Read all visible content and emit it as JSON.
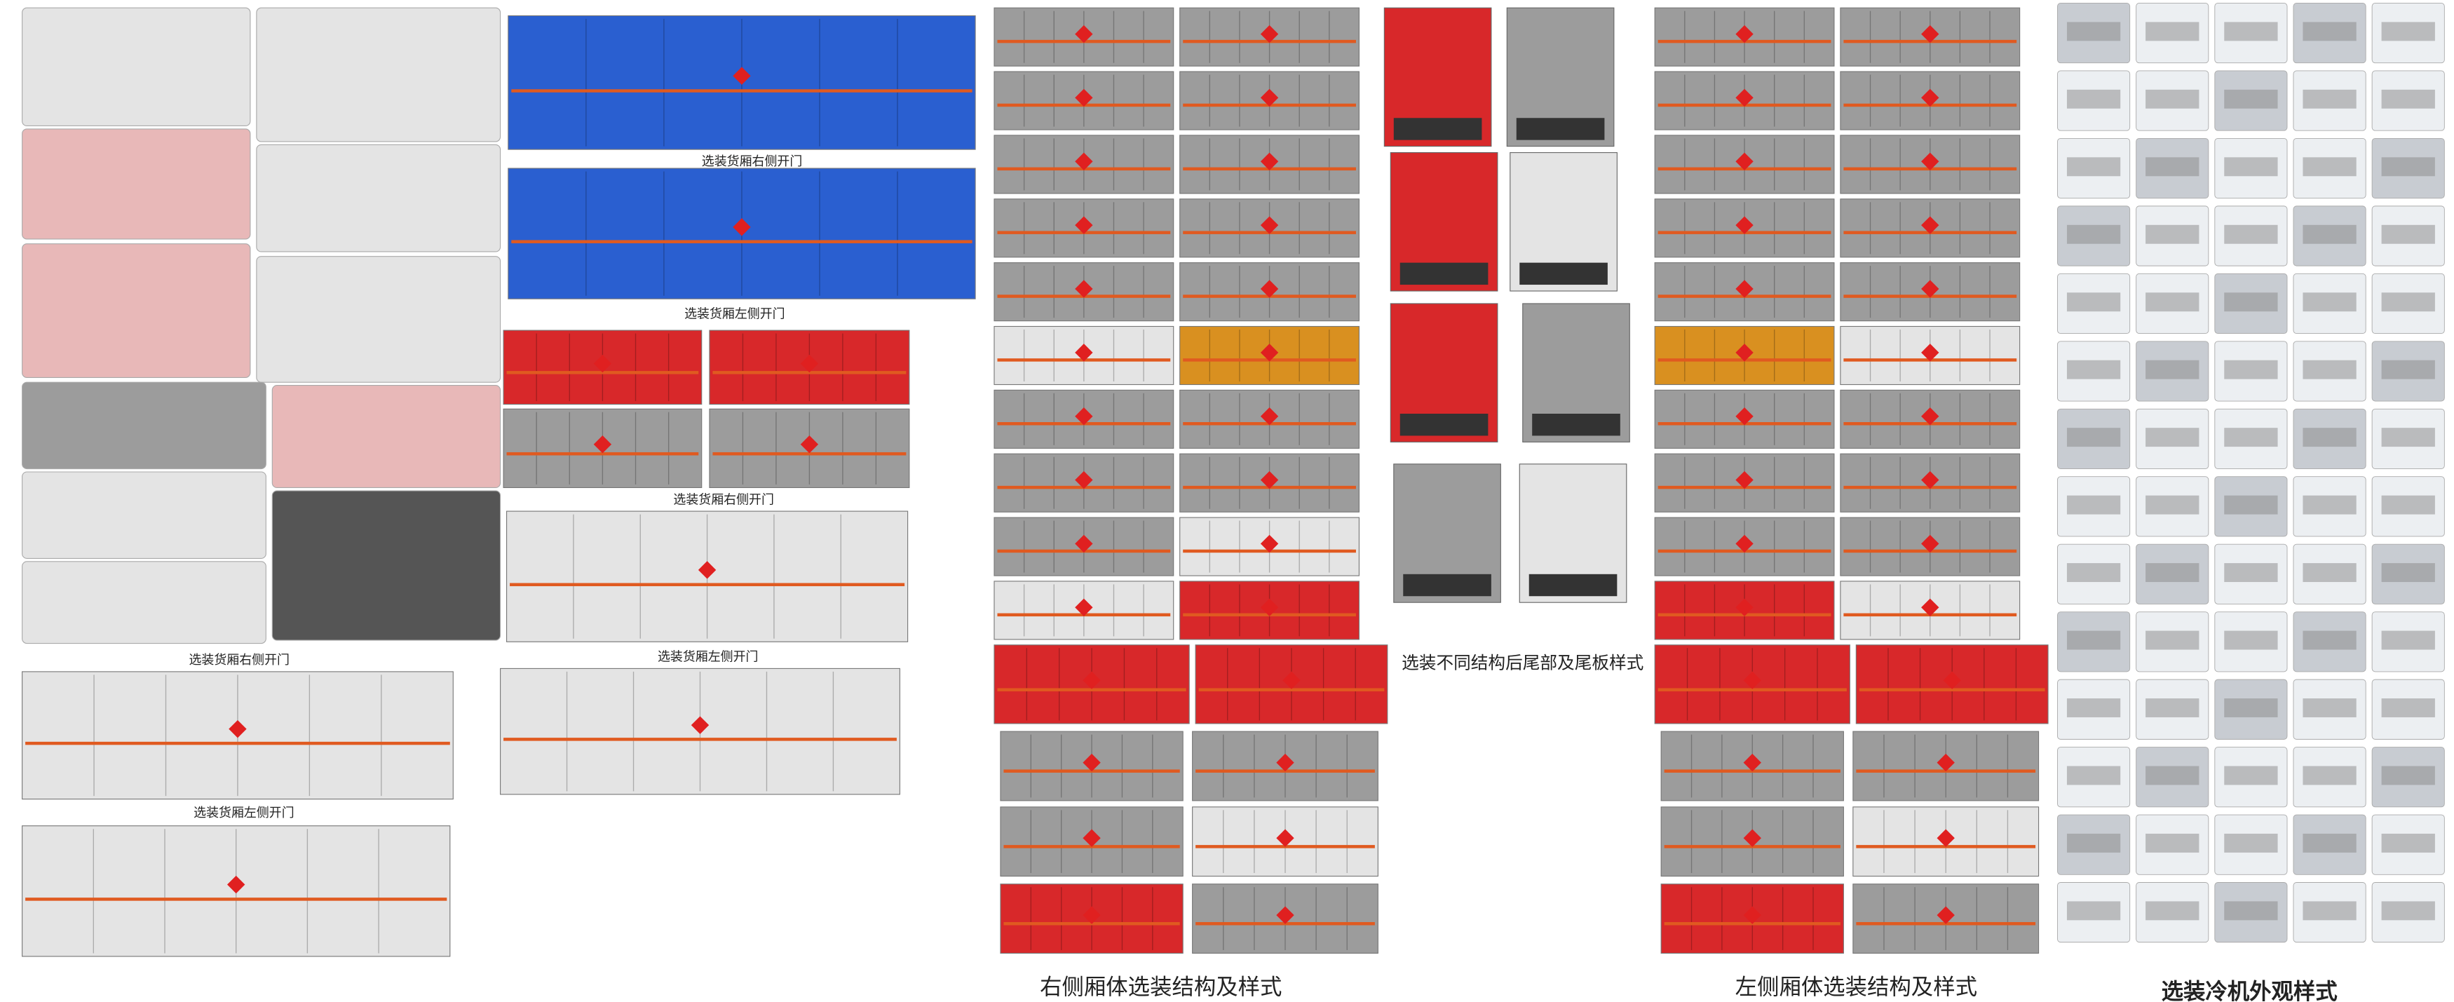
{
  "captions": [
    "选装货厢右侧开门",
    "选装货厢左侧开门",
    "选装货厢右侧开门",
    "选装货厢左侧开门",
    "选装货厢右侧开门",
    "选装货厢左侧开门",
    "选装不同结构后尾部及尾板样式",
    "右侧厢体选装结构及样式",
    "左侧厢体选装结构及样式",
    "选装冷机外观样式"
  ]
}
